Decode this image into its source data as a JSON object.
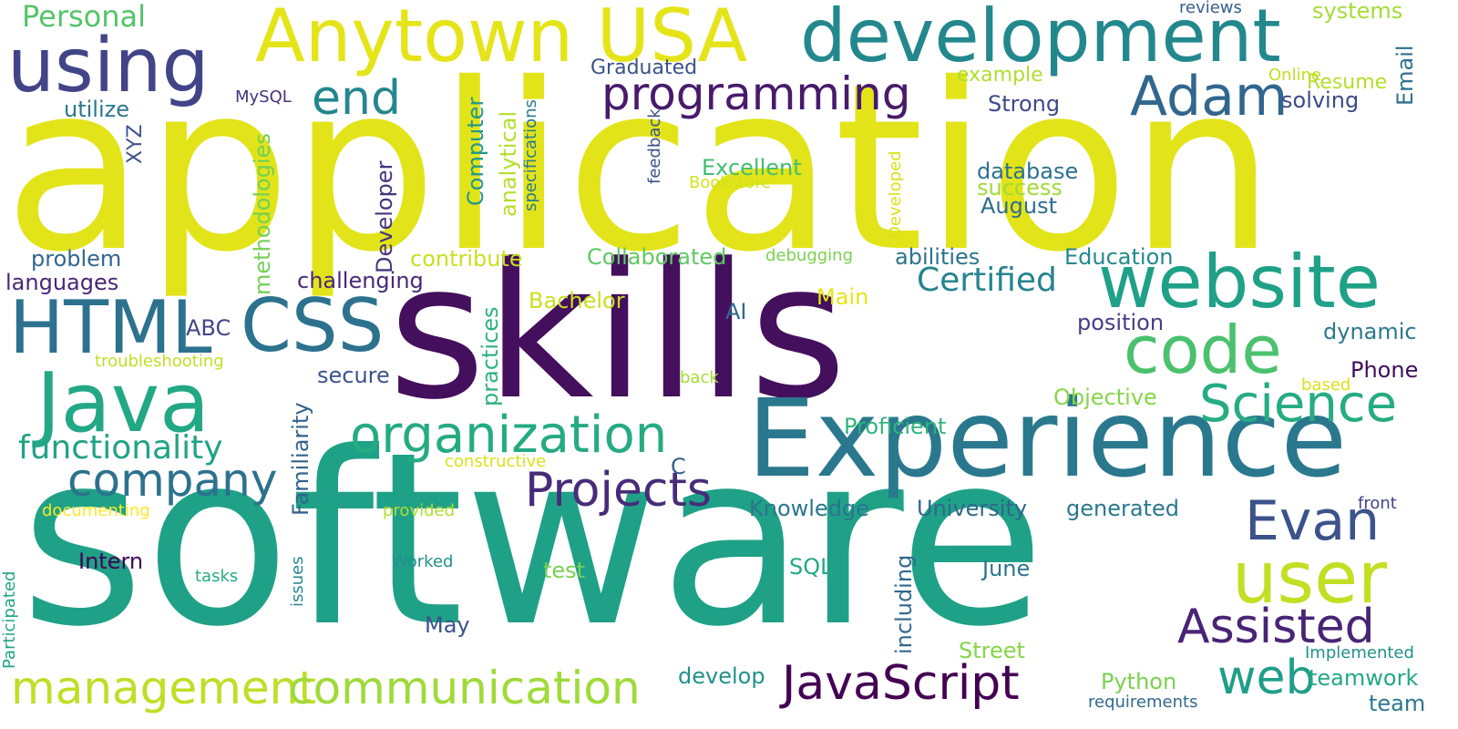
{
  "words": [
    {
      "text": "application",
      "color": "#e2e419"
    },
    {
      "text": "software",
      "color": "#1fa187"
    },
    {
      "text": "skills",
      "color": "#440f5c"
    },
    {
      "text": "Experience",
      "color": "#2a788e"
    },
    {
      "text": "development",
      "color": "#23888e"
    },
    {
      "text": "Anytown USA",
      "color": "#e5e419"
    },
    {
      "text": "using",
      "color": "#414487"
    },
    {
      "text": "Java",
      "color": "#22a884"
    },
    {
      "text": "website",
      "color": "#1fa188"
    },
    {
      "text": "code",
      "color": "#4ac16d"
    },
    {
      "text": "CSS",
      "color": "#2c728e"
    },
    {
      "text": "HTML",
      "color": "#2c728e"
    },
    {
      "text": "user",
      "color": "#c2df23"
    },
    {
      "text": "Adam",
      "color": "#31668e"
    },
    {
      "text": "Evan",
      "color": "#3b528b"
    },
    {
      "text": "management",
      "color": "#bddf26"
    },
    {
      "text": "communication",
      "color": "#a0da39"
    },
    {
      "text": "organization",
      "color": "#25ab82"
    },
    {
      "text": "programming",
      "color": "#481a6c"
    },
    {
      "text": "JavaScript",
      "color": "#440154"
    },
    {
      "text": "company",
      "color": "#2c728e"
    },
    {
      "text": "Science",
      "color": "#25ac82"
    },
    {
      "text": "Projects",
      "color": "#472c7a"
    },
    {
      "text": "Assisted",
      "color": "#482475"
    },
    {
      "text": "web",
      "color": "#1f9e89"
    },
    {
      "text": "end",
      "color": "#24868e"
    },
    {
      "text": "functionality",
      "color": "#20a386"
    },
    {
      "text": "Certified",
      "color": "#25848e"
    },
    {
      "text": "Personal",
      "color": "#54c568"
    },
    {
      "text": "Resume",
      "color": "#b5de2b"
    },
    {
      "text": "Graduated",
      "color": "#3b528b"
    },
    {
      "text": "Strong",
      "color": "#3e4989"
    },
    {
      "text": "solving",
      "color": "#3e4a89"
    },
    {
      "text": "example",
      "color": "#b0dd2f"
    },
    {
      "text": "systems",
      "color": "#a5db36"
    },
    {
      "text": "reviews",
      "color": "#355f8d"
    },
    {
      "text": "Email",
      "color": "#2d708e"
    },
    {
      "text": "Online",
      "color": "#c0df25"
    },
    {
      "text": "MySQL",
      "color": "#46327e"
    },
    {
      "text": "utilize",
      "color": "#2a778e"
    },
    {
      "text": "XYZ",
      "color": "#3b528b"
    },
    {
      "text": "Excellent",
      "color": "#40bd72"
    },
    {
      "text": "database",
      "color": "#2d718e"
    },
    {
      "text": "success",
      "color": "#a0da39"
    },
    {
      "text": "August",
      "color": "#2e6d8e"
    },
    {
      "text": "Bookstore",
      "color": "#d2e21b"
    },
    {
      "text": "feedback",
      "color": "#3b528b"
    },
    {
      "text": "Developed",
      "color": "#d8e219"
    },
    {
      "text": "specifications",
      "color": "#297b8e"
    },
    {
      "text": "analytical",
      "color": "#b5de2b"
    },
    {
      "text": "Computer",
      "color": "#1f988b"
    },
    {
      "text": "methodologies",
      "color": "#73d056"
    },
    {
      "text": "Developer",
      "color": "#46337e"
    },
    {
      "text": "contribute",
      "color": "#c8e020"
    },
    {
      "text": "Collaborated",
      "color": "#5ec962"
    },
    {
      "text": "debugging",
      "color": "#7ad151"
    },
    {
      "text": "abilities",
      "color": "#2c738e"
    },
    {
      "text": "Education",
      "color": "#23898e"
    },
    {
      "text": "problem",
      "color": "#31678e"
    },
    {
      "text": "languages",
      "color": "#482777"
    },
    {
      "text": "challenging",
      "color": "#482878"
    },
    {
      "text": "Bachelor",
      "color": "#c8e020"
    },
    {
      "text": "Main",
      "color": "#e5e419"
    },
    {
      "text": "AI",
      "color": "#306a8e"
    },
    {
      "text": "position",
      "color": "#433e85"
    },
    {
      "text": "dynamic",
      "color": "#2a788e"
    },
    {
      "text": "ABC",
      "color": "#404688"
    },
    {
      "text": "troubleshooting",
      "color": "#c0df25"
    },
    {
      "text": "secure",
      "color": "#3b528b"
    },
    {
      "text": "practices",
      "color": "#2db27d"
    },
    {
      "text": "Familiarity",
      "color": "#33638d"
    },
    {
      "text": "back",
      "color": "#a8db34"
    },
    {
      "text": "Phone",
      "color": "#3f0c5b"
    },
    {
      "text": "based",
      "color": "#d8e219"
    },
    {
      "text": "Objective",
      "color": "#86d549"
    },
    {
      "text": "Proficient",
      "color": "#2fb47c"
    },
    {
      "text": "constructive",
      "color": "#d8e219"
    },
    {
      "text": "C",
      "color": "#355e8d"
    },
    {
      "text": "documenting",
      "color": "#fde725"
    },
    {
      "text": "provided",
      "color": "#b0dd2f"
    },
    {
      "text": "Knowledge",
      "color": "#2b758e"
    },
    {
      "text": "University",
      "color": "#31678e"
    },
    {
      "text": "generated",
      "color": "#2a788e"
    },
    {
      "text": "front",
      "color": "#414487"
    },
    {
      "text": "Participated",
      "color": "#20a486"
    },
    {
      "text": "issues",
      "color": "#23898e"
    },
    {
      "text": "tasks",
      "color": "#25ac82"
    },
    {
      "text": "Intern",
      "color": "#440154"
    },
    {
      "text": "Worked",
      "color": "#21918c"
    },
    {
      "text": "test",
      "color": "#7ad151"
    },
    {
      "text": "SQL",
      "color": "#22a884"
    },
    {
      "text": "June",
      "color": "#2c738e"
    },
    {
      "text": "including",
      "color": "#31688e"
    },
    {
      "text": "May",
      "color": "#3b528b"
    },
    {
      "text": "Street",
      "color": "#86d549"
    },
    {
      "text": "Implemented",
      "color": "#21918c"
    },
    {
      "text": "develop",
      "color": "#21918c"
    },
    {
      "text": "Python",
      "color": "#7ad151"
    },
    {
      "text": "teamwork",
      "color": "#22a884"
    },
    {
      "text": "requirements",
      "color": "#31688e"
    },
    {
      "text": "team",
      "color": "#2a788e"
    }
  ]
}
